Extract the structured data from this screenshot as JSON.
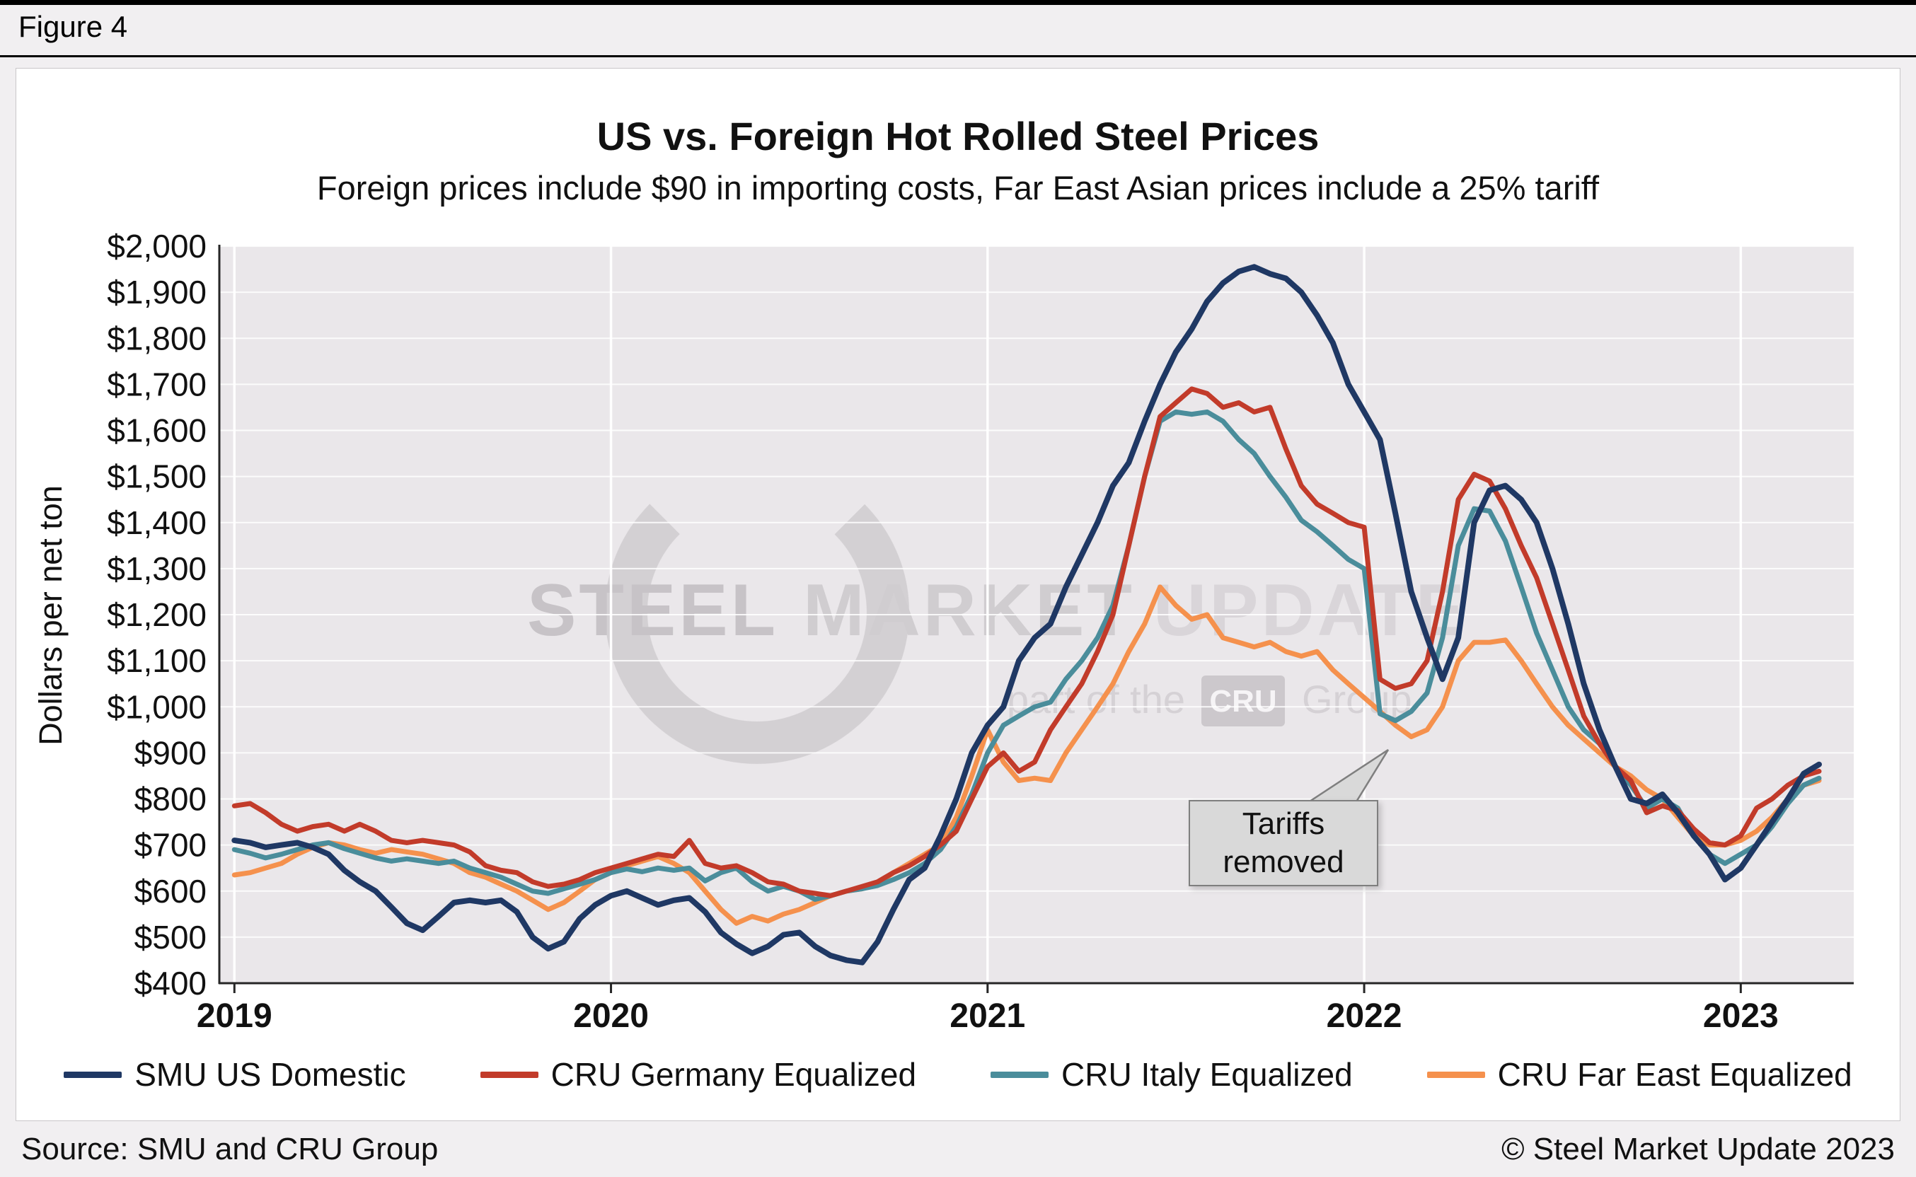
{
  "figure_label": "Figure 4",
  "watermark": {
    "line1": [
      "STEEL",
      "MARKET",
      "UPDATE"
    ],
    "line2_prefix": "part of the",
    "line2_logo": "CRU",
    "line2_suffix": "Group"
  },
  "footer": {
    "source": "Source: SMU and CRU Group",
    "copyright": "© Steel Market Update 2023"
  },
  "chart_data": {
    "type": "line",
    "title": "US vs. Foreign Hot Rolled Steel Prices",
    "subtitle": "Foreign prices include $90 in importing costs, Far East Asian prices include a 25% tariff",
    "xlabel": "",
    "ylabel": "Dollars per net ton",
    "ylim": [
      400,
      2000
    ],
    "xlim": [
      2018.96,
      2023.3
    ],
    "grid": true,
    "legend_position": "bottom",
    "plot_bg": "#eae7ea",
    "grid_color": "#ffffff",
    "axis_color": "#262626",
    "annotation": {
      "text": "Tariffs removed",
      "target_x": 2022.06,
      "target_y": 900
    },
    "y_ticks": [
      {
        "value": 2000,
        "label": "$2,000"
      },
      {
        "value": 1900,
        "label": "$1,900"
      },
      {
        "value": 1800,
        "label": "$1,800"
      },
      {
        "value": 1700,
        "label": "$1,700"
      },
      {
        "value": 1600,
        "label": "$1,600"
      },
      {
        "value": 1500,
        "label": "$1,500"
      },
      {
        "value": 1400,
        "label": "$1,400"
      },
      {
        "value": 1300,
        "label": "$1,300"
      },
      {
        "value": 1200,
        "label": "$1,200"
      },
      {
        "value": 1100,
        "label": "$1,100"
      },
      {
        "value": 1000,
        "label": "$1,000"
      },
      {
        "value": 900,
        "label": "$900"
      },
      {
        "value": 800,
        "label": "$800"
      },
      {
        "value": 700,
        "label": "$700"
      },
      {
        "value": 600,
        "label": "$600"
      },
      {
        "value": 500,
        "label": "$500"
      },
      {
        "value": 400,
        "label": "$400"
      }
    ],
    "x_ticks": [
      {
        "value": 2019,
        "label": "2019"
      },
      {
        "value": 2020,
        "label": "2020"
      },
      {
        "value": 2021,
        "label": "2021"
      },
      {
        "value": 2022,
        "label": "2022"
      },
      {
        "value": 2023,
        "label": "2023"
      }
    ],
    "x": [
      2019.0,
      2019.042,
      2019.083,
      2019.125,
      2019.167,
      2019.208,
      2019.25,
      2019.292,
      2019.333,
      2019.375,
      2019.417,
      2019.458,
      2019.5,
      2019.542,
      2019.583,
      2019.625,
      2019.667,
      2019.708,
      2019.75,
      2019.792,
      2019.833,
      2019.875,
      2019.917,
      2019.958,
      2020.0,
      2020.042,
      2020.083,
      2020.125,
      2020.167,
      2020.208,
      2020.25,
      2020.292,
      2020.333,
      2020.375,
      2020.417,
      2020.458,
      2020.5,
      2020.542,
      2020.583,
      2020.625,
      2020.667,
      2020.708,
      2020.75,
      2020.792,
      2020.833,
      2020.875,
      2020.917,
      2020.958,
      2021.0,
      2021.042,
      2021.083,
      2021.125,
      2021.167,
      2021.208,
      2021.25,
      2021.292,
      2021.333,
      2021.375,
      2021.417,
      2021.458,
      2021.5,
      2021.542,
      2021.583,
      2021.625,
      2021.667,
      2021.708,
      2021.75,
      2021.792,
      2021.833,
      2021.875,
      2021.917,
      2021.958,
      2022.0,
      2022.042,
      2022.083,
      2022.125,
      2022.167,
      2022.208,
      2022.25,
      2022.292,
      2022.333,
      2022.375,
      2022.417,
      2022.458,
      2022.5,
      2022.542,
      2022.583,
      2022.625,
      2022.667,
      2022.708,
      2022.75,
      2022.792,
      2022.833,
      2022.875,
      2022.917,
      2022.958,
      2023.0,
      2023.042,
      2023.083,
      2023.125,
      2023.167,
      2023.208
    ],
    "series": [
      {
        "name": "SMU US Domestic",
        "color": "#1f3864",
        "values": [
          710,
          705,
          695,
          700,
          705,
          695,
          680,
          645,
          620,
          600,
          565,
          530,
          515,
          545,
          575,
          580,
          575,
          580,
          555,
          500,
          475,
          490,
          540,
          570,
          590,
          600,
          585,
          570,
          580,
          585,
          555,
          510,
          485,
          465,
          480,
          505,
          510,
          480,
          460,
          450,
          445,
          490,
          560,
          625,
          650,
          720,
          800,
          900,
          960,
          1000,
          1100,
          1150,
          1180,
          1260,
          1330,
          1400,
          1480,
          1530,
          1620,
          1700,
          1770,
          1820,
          1880,
          1920,
          1945,
          1955,
          1940,
          1930,
          1900,
          1850,
          1790,
          1700,
          1640,
          1580,
          1420,
          1250,
          1150,
          1060,
          1150,
          1400,
          1470,
          1480,
          1450,
          1400,
          1300,
          1180,
          1050,
          950,
          870,
          800,
          790,
          810,
          770,
          720,
          680,
          625,
          650,
          700,
          750,
          800,
          855,
          875
        ]
      },
      {
        "name": "CRU Germany Equalized",
        "color": "#c23b2a",
        "values": [
          785,
          790,
          770,
          745,
          730,
          740,
          745,
          730,
          745,
          730,
          710,
          705,
          710,
          705,
          700,
          685,
          655,
          645,
          640,
          620,
          610,
          615,
          625,
          640,
          650,
          660,
          670,
          680,
          675,
          710,
          660,
          650,
          655,
          640,
          620,
          615,
          600,
          595,
          590,
          600,
          610,
          620,
          640,
          655,
          675,
          700,
          730,
          800,
          870,
          900,
          860,
          880,
          950,
          1000,
          1050,
          1120,
          1200,
          1350,
          1500,
          1630,
          1660,
          1690,
          1680,
          1650,
          1660,
          1640,
          1650,
          1560,
          1480,
          1440,
          1420,
          1400,
          1390,
          1060,
          1040,
          1050,
          1100,
          1250,
          1450,
          1505,
          1490,
          1430,
          1350,
          1280,
          1180,
          1080,
          980,
          920,
          870,
          840,
          770,
          785,
          775,
          735,
          705,
          700,
          720,
          780,
          800,
          830,
          850,
          860
        ]
      },
      {
        "name": "CRU Italy Equalized",
        "color": "#4a8d9b",
        "values": [
          690,
          682,
          672,
          680,
          690,
          700,
          705,
          692,
          682,
          672,
          665,
          670,
          665,
          660,
          665,
          650,
          640,
          630,
          615,
          600,
          595,
          605,
          615,
          625,
          640,
          648,
          642,
          650,
          645,
          650,
          622,
          640,
          650,
          620,
          600,
          610,
          600,
          582,
          590,
          600,
          605,
          612,
          625,
          640,
          660,
          690,
          740,
          810,
          900,
          960,
          980,
          1000,
          1010,
          1060,
          1100,
          1150,
          1220,
          1350,
          1500,
          1620,
          1640,
          1635,
          1640,
          1620,
          1580,
          1550,
          1500,
          1455,
          1405,
          1380,
          1350,
          1320,
          1300,
          985,
          970,
          990,
          1030,
          1150,
          1350,
          1430,
          1425,
          1360,
          1260,
          1160,
          1080,
          1000,
          950,
          920,
          870,
          830,
          780,
          800,
          780,
          720,
          680,
          660,
          680,
          700,
          740,
          790,
          830,
          845
        ]
      },
      {
        "name": "CRU Far East Equalized",
        "color": "#f5914d",
        "values": [
          635,
          640,
          650,
          660,
          680,
          695,
          705,
          700,
          690,
          682,
          690,
          685,
          680,
          670,
          660,
          640,
          630,
          615,
          600,
          580,
          560,
          575,
          600,
          625,
          640,
          655,
          665,
          675,
          660,
          640,
          600,
          560,
          530,
          545,
          535,
          550,
          560,
          575,
          590,
          600,
          605,
          615,
          640,
          660,
          680,
          700,
          760,
          850,
          950,
          880,
          840,
          845,
          840,
          900,
          950,
          1000,
          1050,
          1120,
          1180,
          1260,
          1220,
          1190,
          1200,
          1150,
          1140,
          1130,
          1140,
          1120,
          1110,
          1120,
          1080,
          1050,
          1020,
          990,
          960,
          935,
          950,
          1000,
          1100,
          1140,
          1140,
          1145,
          1100,
          1050,
          1000,
          960,
          930,
          900,
          870,
          850,
          820,
          800,
          760,
          720,
          700,
          700,
          710,
          730,
          760,
          800,
          830,
          840
        ]
      }
    ]
  }
}
